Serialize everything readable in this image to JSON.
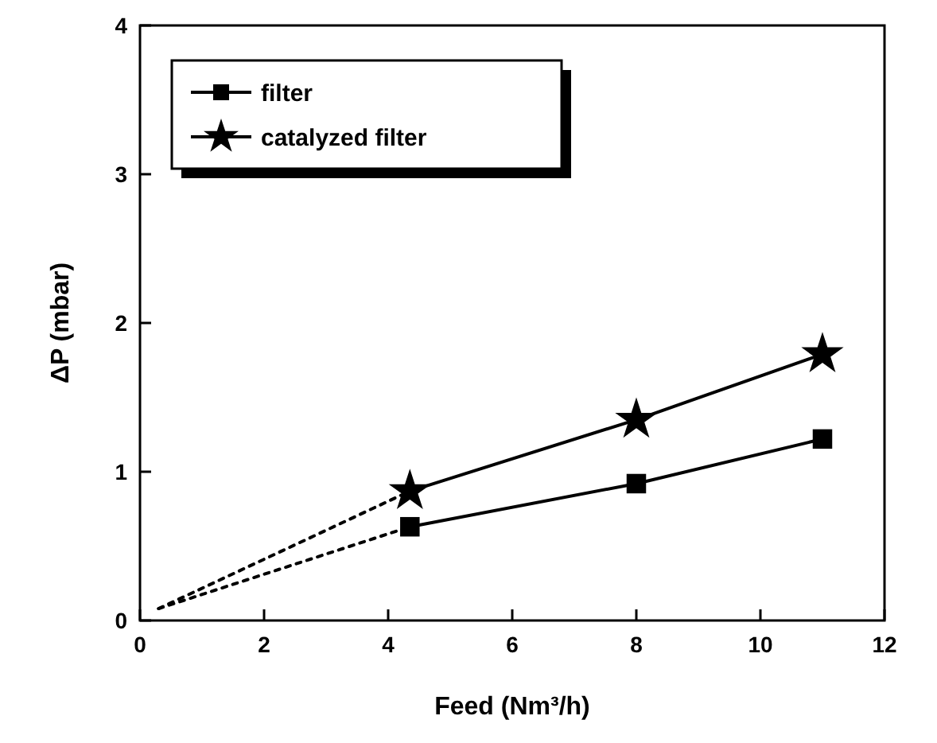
{
  "chart_data": {
    "type": "line",
    "xlabel": "Feed (Nm³/h)",
    "ylabel": "ΔP (mbar)",
    "xlim": [
      0,
      12
    ],
    "ylim": [
      0,
      4
    ],
    "xticks": [
      0,
      2,
      4,
      6,
      8,
      10,
      12
    ],
    "yticks": [
      0,
      1,
      2,
      3,
      4
    ],
    "grid": false,
    "legend": "top left",
    "series": [
      {
        "name": "filter",
        "color": "#000000",
        "x": [
          4.35,
          8,
          11
        ],
        "values": [
          0.63,
          0.92,
          1.22
        ],
        "marker": "square",
        "line_style": "solid"
      },
      {
        "name": "catalyzed filter",
        "color": "#000000",
        "x": [
          4.35,
          8,
          11
        ],
        "values": [
          0.87,
          1.35,
          1.79
        ],
        "marker": "star",
        "line_style": "solid"
      },
      {
        "color": "#000000",
        "x": [
          0.3,
          4.35
        ],
        "values": [
          0.08,
          0.63
        ],
        "marker": "none",
        "line_style": "dotted"
      },
      {
        "color": "#000000",
        "x": [
          0.3,
          4.35
        ],
        "values": [
          0.08,
          0.87
        ],
        "marker": "none",
        "line_style": "dotted"
      }
    ]
  }
}
